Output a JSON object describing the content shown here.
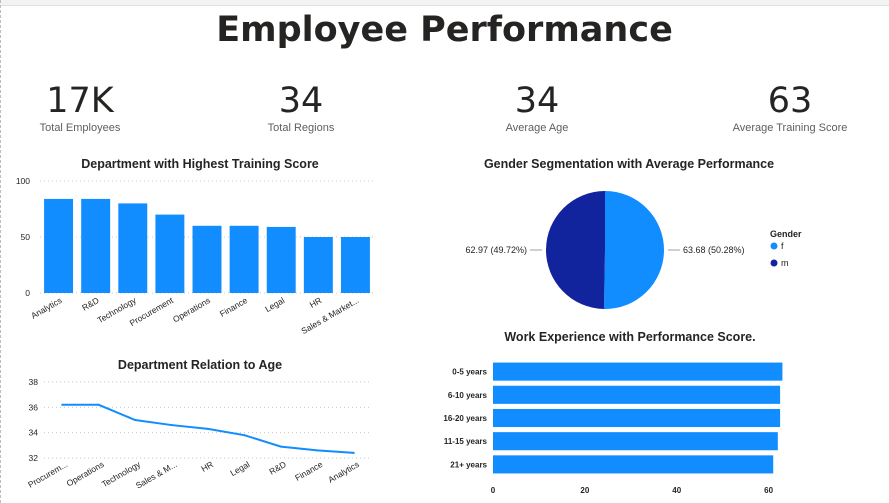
{
  "page": {
    "title": "Employee Performance"
  },
  "kpis": [
    {
      "value": "17K",
      "label": "Total Employees"
    },
    {
      "value": "34",
      "label": "Total Regions"
    },
    {
      "value": "34",
      "label": "Average Age"
    },
    {
      "value": "63",
      "label": "Average Training Score"
    }
  ],
  "colors": {
    "primary": "#118dff",
    "dark": "#12239e",
    "text": "#252423",
    "grid": "#c8c8c8"
  },
  "chart_data": [
    {
      "id": "training",
      "type": "bar",
      "title": "Department with Highest Training Score",
      "categories": [
        "Analytics",
        "R&D",
        "Technology",
        "Procurement",
        "Operations",
        "Finance",
        "Legal",
        "HR",
        "Sales & Market..."
      ],
      "values": [
        84,
        84,
        80,
        70,
        60,
        60,
        59,
        50,
        50
      ],
      "ylim": [
        0,
        100
      ],
      "yticks": [
        0,
        50,
        100
      ],
      "xlabel": "",
      "ylabel": "",
      "grid": true
    },
    {
      "id": "gender",
      "type": "pie",
      "title": "Gender Segmentation with Average Performance",
      "legend_title": "Gender",
      "legend_position": "right",
      "slices": [
        {
          "name": "f",
          "value": 63.68,
          "label": "63.68 (50.28%)",
          "color": "#118dff"
        },
        {
          "name": "m",
          "value": 62.97,
          "label": "62.97 (49.72%)",
          "color": "#12239e"
        }
      ]
    },
    {
      "id": "age",
      "type": "line",
      "title": "Department Relation to Age",
      "categories": [
        "Procurem...",
        "Operations",
        "Technology",
        "Sales & M...",
        "HR",
        "Legal",
        "R&D",
        "Finance",
        "Analytics"
      ],
      "values": [
        36.2,
        36.2,
        35.0,
        34.6,
        34.3,
        33.8,
        32.9,
        32.6,
        32.4
      ],
      "ylim": [
        32,
        38
      ],
      "yticks": [
        32,
        34,
        36,
        38
      ],
      "xlabel": "",
      "ylabel": "",
      "grid": true
    },
    {
      "id": "experience",
      "type": "bar",
      "orientation": "horizontal",
      "title": "Work Experience with Performance Score.",
      "categories": [
        "0-5 years",
        "6-10 years",
        "16-20 years",
        "11-15 years",
        "21+ years"
      ],
      "values": [
        63,
        62.5,
        62.5,
        62,
        61
      ],
      "xlim": [
        0,
        64
      ],
      "xticks": [
        0,
        20,
        40,
        60
      ],
      "xlabel": "",
      "ylabel": ""
    }
  ]
}
